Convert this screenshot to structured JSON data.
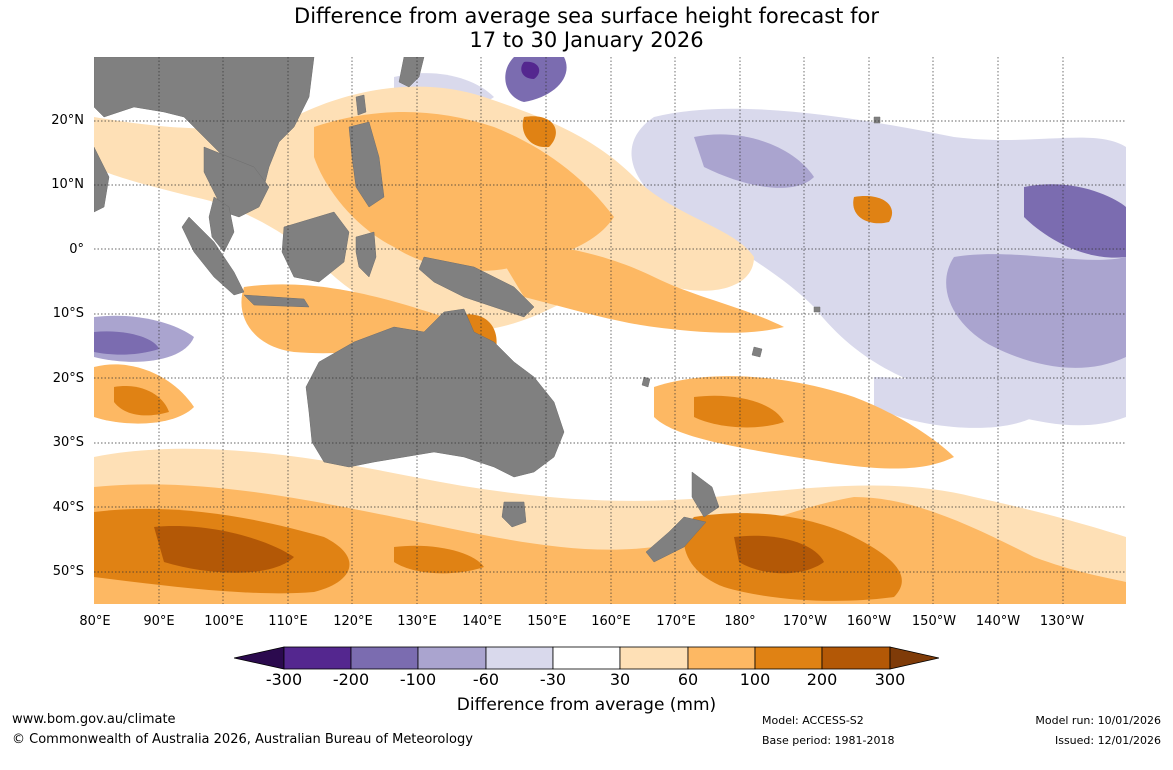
{
  "title": {
    "line1": "Difference from average sea surface height forecast for",
    "line2": "17 to 30 January 2026"
  },
  "map": {
    "lat_labels": [
      "20°N",
      "10°N",
      "0°",
      "10°S",
      "20°S",
      "30°S",
      "40°S",
      "50°S"
    ],
    "lon_labels": [
      "80°E",
      "90°E",
      "100°E",
      "110°E",
      "120°E",
      "130°E",
      "140°E",
      "150°E",
      "160°E",
      "170°E",
      "180°",
      "170°W",
      "160°W",
      "150°W",
      "140°W",
      "130°W"
    ],
    "land_color": "#808080"
  },
  "legend": {
    "title": "Difference from average (mm)",
    "ticks": [
      "-300",
      "-200",
      "-100",
      "-60",
      "-30",
      "30",
      "60",
      "100",
      "200",
      "300"
    ],
    "colors": [
      "#2b0a4e",
      "#54278f",
      "#7b6cb0",
      "#aaa4cf",
      "#d9d9ec",
      "#ffffff",
      "#fee0b6",
      "#fdb863",
      "#e08214",
      "#b35806",
      "#7f3b08"
    ]
  },
  "footer": {
    "website": "www.bom.gov.au/climate",
    "copyright": "© Commonwealth of Australia 2026, Australian Bureau of Meteorology",
    "model": "Model: ACCESS-S2",
    "base_period": "Base period: 1981-2018",
    "model_run": "Model run: 10/01/2026",
    "issued": "Issued: 12/01/2026"
  }
}
